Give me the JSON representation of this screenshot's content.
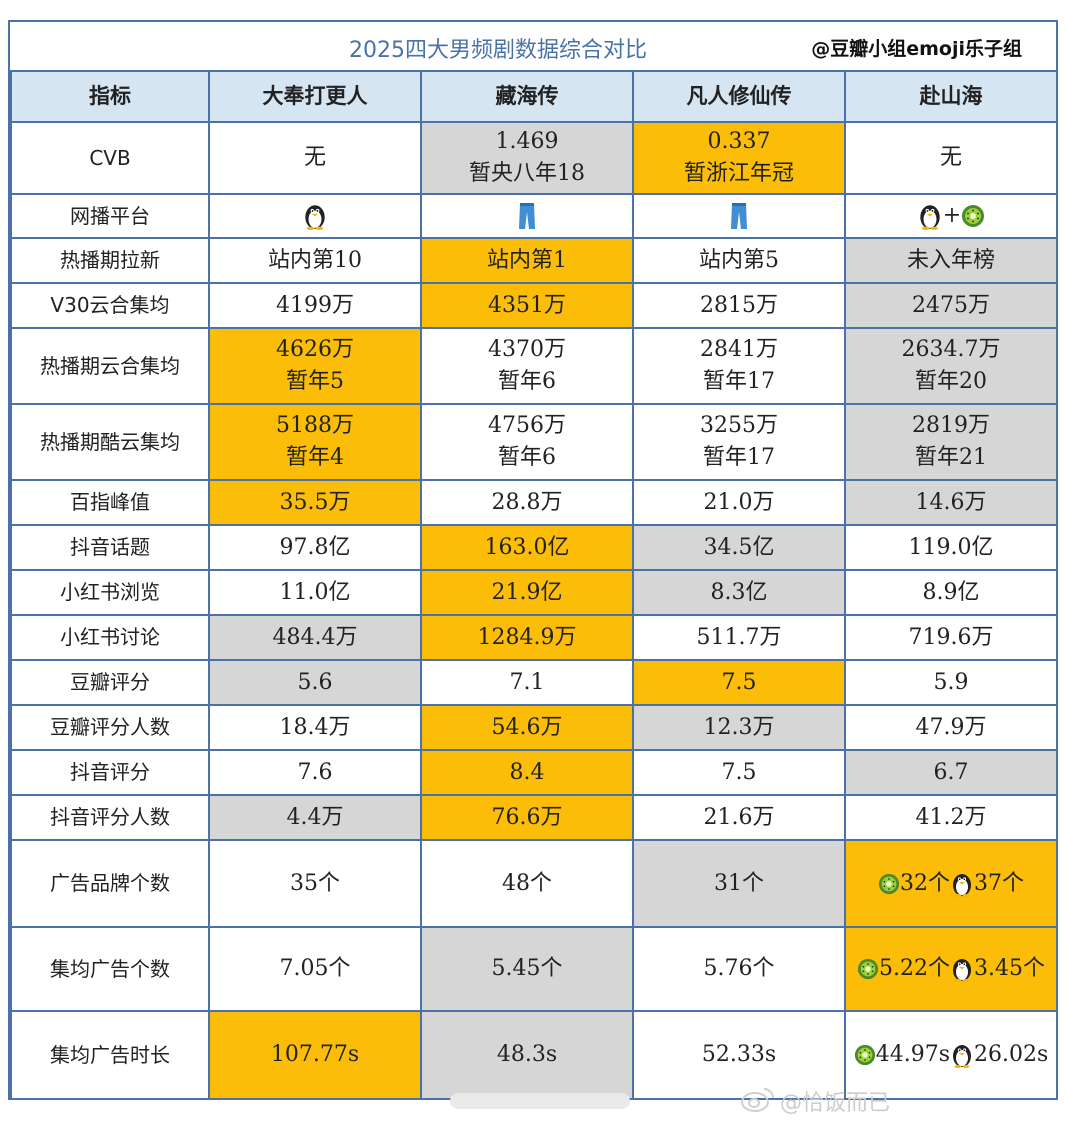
{
  "title": "2025四大男频剧数据综合对比",
  "credit": "@豆瓣小组emoji乐子组",
  "headers": [
    "指标",
    "大奉打更人",
    "藏海传",
    "凡人修仙传",
    "赴山海"
  ],
  "rows": {
    "cvb": {
      "label": "CVB",
      "c1": "无",
      "c2a": "1.469",
      "c2b": "暂央八年18",
      "c3a": "0.337",
      "c3b": "暂浙江年冠",
      "c4": "无"
    },
    "platform": {
      "label": "网播平台",
      "c1_icon": "penguin-icon",
      "c2_icon": "jeans-icon",
      "c3_icon": "jeans-icon",
      "c4_icons": [
        "penguin-icon",
        "kiwi-icon"
      ],
      "c4_plus": "+"
    },
    "hot_new": {
      "label": "热播期拉新",
      "c1": "站内第10",
      "c2": "站内第1",
      "c3": "站内第5",
      "c4": "未入年榜"
    },
    "v30": {
      "label": "V30云合集均",
      "c1": "4199万",
      "c2": "4351万",
      "c3": "2815万",
      "c4": "2475万"
    },
    "hot_yunhe": {
      "label": "热播期云合集均",
      "c1a": "4626万",
      "c1b": "暂年5",
      "c2a": "4370万",
      "c2b": "暂年6",
      "c3a": "2841万",
      "c3b": "暂年17",
      "c4a": "2634.7万",
      "c4b": "暂年20"
    },
    "hot_kuyun": {
      "label": "热播期酷云集均",
      "c1a": "5188万",
      "c1b": "暂年4",
      "c2a": "4756万",
      "c2b": "暂年6",
      "c3a": "3255万",
      "c3b": "暂年17",
      "c4a": "2819万",
      "c4b": "暂年21"
    },
    "baidu": {
      "label": "百指峰值",
      "c1": "35.5万",
      "c2": "28.8万",
      "c3": "21.0万",
      "c4": "14.6万"
    },
    "douyin_topic": {
      "label": "抖音话题",
      "c1": "97.8亿",
      "c2": "163.0亿",
      "c3": "34.5亿",
      "c4": "119.0亿"
    },
    "xhs_views": {
      "label": "小红书浏览",
      "c1": "11.0亿",
      "c2": "21.9亿",
      "c3": "8.3亿",
      "c4": "8.9亿"
    },
    "xhs_disc": {
      "label": "小红书讨论",
      "c1": "484.4万",
      "c2": "1284.9万",
      "c3": "511.7万",
      "c4": "719.6万"
    },
    "douban": {
      "label": "豆瓣评分",
      "c1": "5.6",
      "c2": "7.1",
      "c3": "7.5",
      "c4": "5.9"
    },
    "douban_n": {
      "label": "豆瓣评分人数",
      "c1": "18.4万",
      "c2": "54.6万",
      "c3": "12.3万",
      "c4": "47.9万"
    },
    "dy_score": {
      "label": "抖音评分",
      "c1": "7.6",
      "c2": "8.4",
      "c3": "7.5",
      "c4": "6.7"
    },
    "dy_n": {
      "label": "抖音评分人数",
      "c1": "4.4万",
      "c2": "76.6万",
      "c3": "21.6万",
      "c4": "41.2万"
    },
    "ad_brands": {
      "label": "广告品牌个数",
      "c1": "35个",
      "c2": "48个",
      "c3": "31个",
      "c4a": "32个",
      "c4b": "37个"
    },
    "ad_count": {
      "label": "集均广告个数",
      "c1": "7.05个",
      "c2": "5.45个",
      "c3": "5.76个",
      "c4a": "5.22个",
      "c4b": "3.45个"
    },
    "ad_time": {
      "label": "集均广告时长",
      "c1": "107.77s",
      "c2": "48.3s",
      "c3": "52.33s",
      "c4a": "44.97s",
      "c4b": "26.02s"
    }
  },
  "colors": {
    "highlight": "#fbbd07",
    "low": "#d6d6d6",
    "header": "#d6e5f2",
    "border": "#4a72a8"
  },
  "footer": {
    "handle": "@恰饭而已",
    "icon": "weibo-icon"
  }
}
